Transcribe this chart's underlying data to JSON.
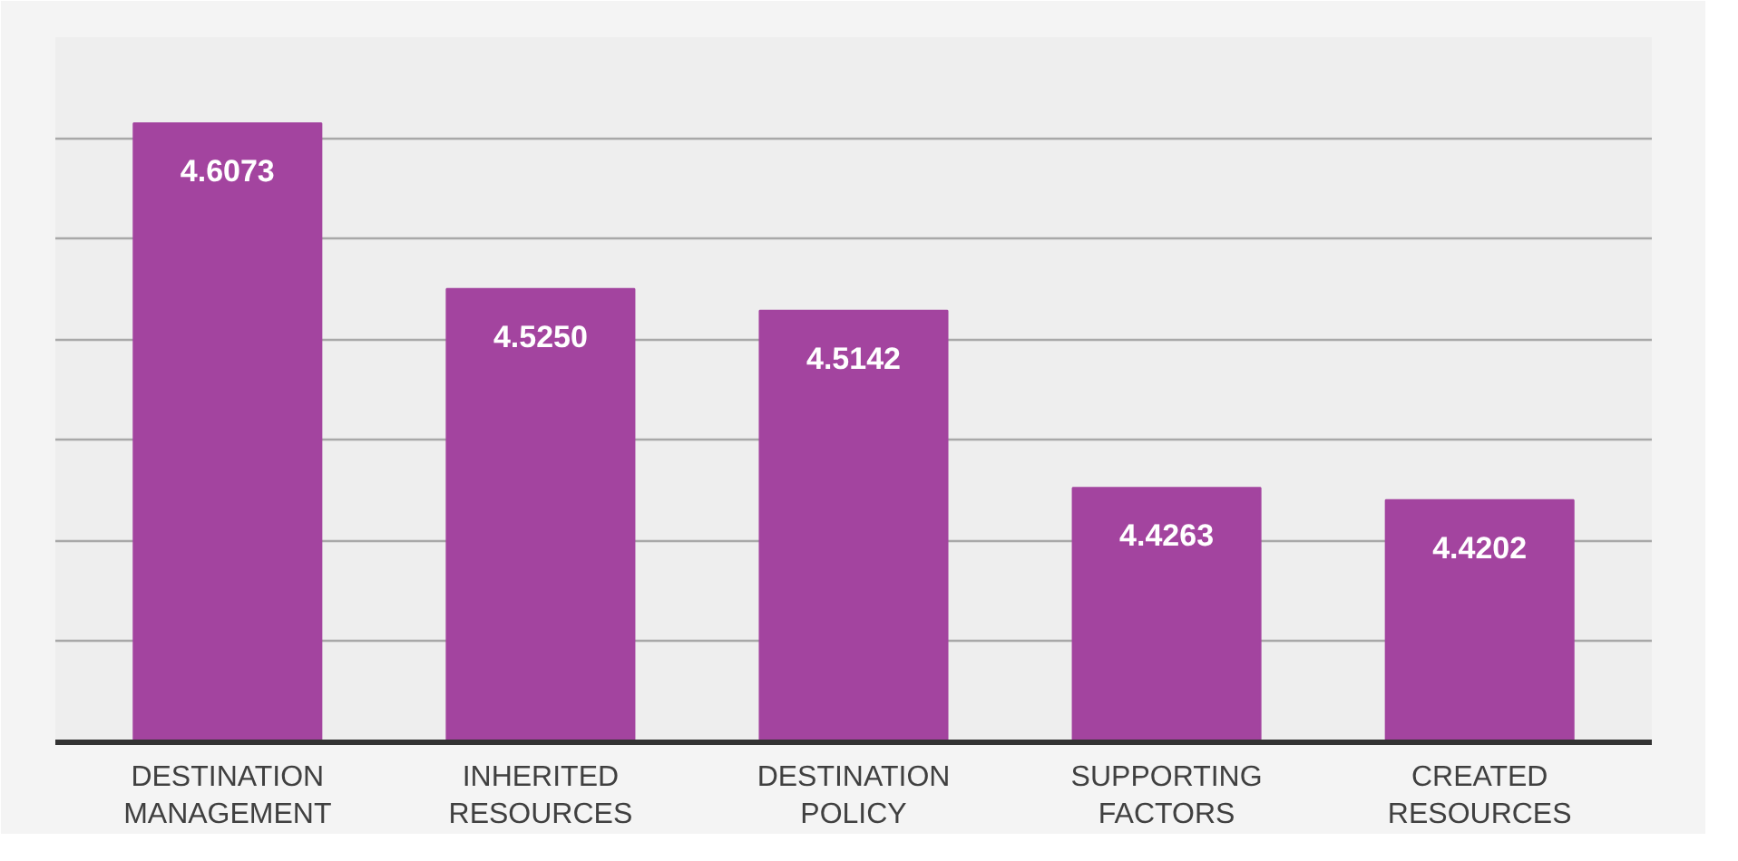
{
  "chart_data": {
    "type": "bar",
    "categories": [
      "DESTINATION MANAGEMENT",
      "INHERITED RESOURCES",
      "DESTINATION POLICY",
      "SUPPORTING FACTORS",
      "CREATED RESOURCES"
    ],
    "values": [
      4.6073,
      4.525,
      4.5142,
      4.4263,
      4.4202
    ],
    "value_labels": [
      "4.6073",
      "4.5250",
      "4.5142",
      "4.4263",
      "4.4202"
    ],
    "color": "#a3449f",
    "ylim": [
      4.3,
      4.65
    ],
    "yticks": [
      {
        "value": 4.3,
        "label": null
      },
      {
        "value": 4.35,
        "label": null
      },
      {
        "value": 4.4,
        "label": null
      },
      {
        "value": 4.45,
        "label": null
      },
      {
        "value": 4.5,
        "label": null
      },
      {
        "value": 4.55,
        "label": null
      },
      {
        "value": 4.6,
        "label": null
      }
    ],
    "grid": "y",
    "tick_labels": "x"
  }
}
